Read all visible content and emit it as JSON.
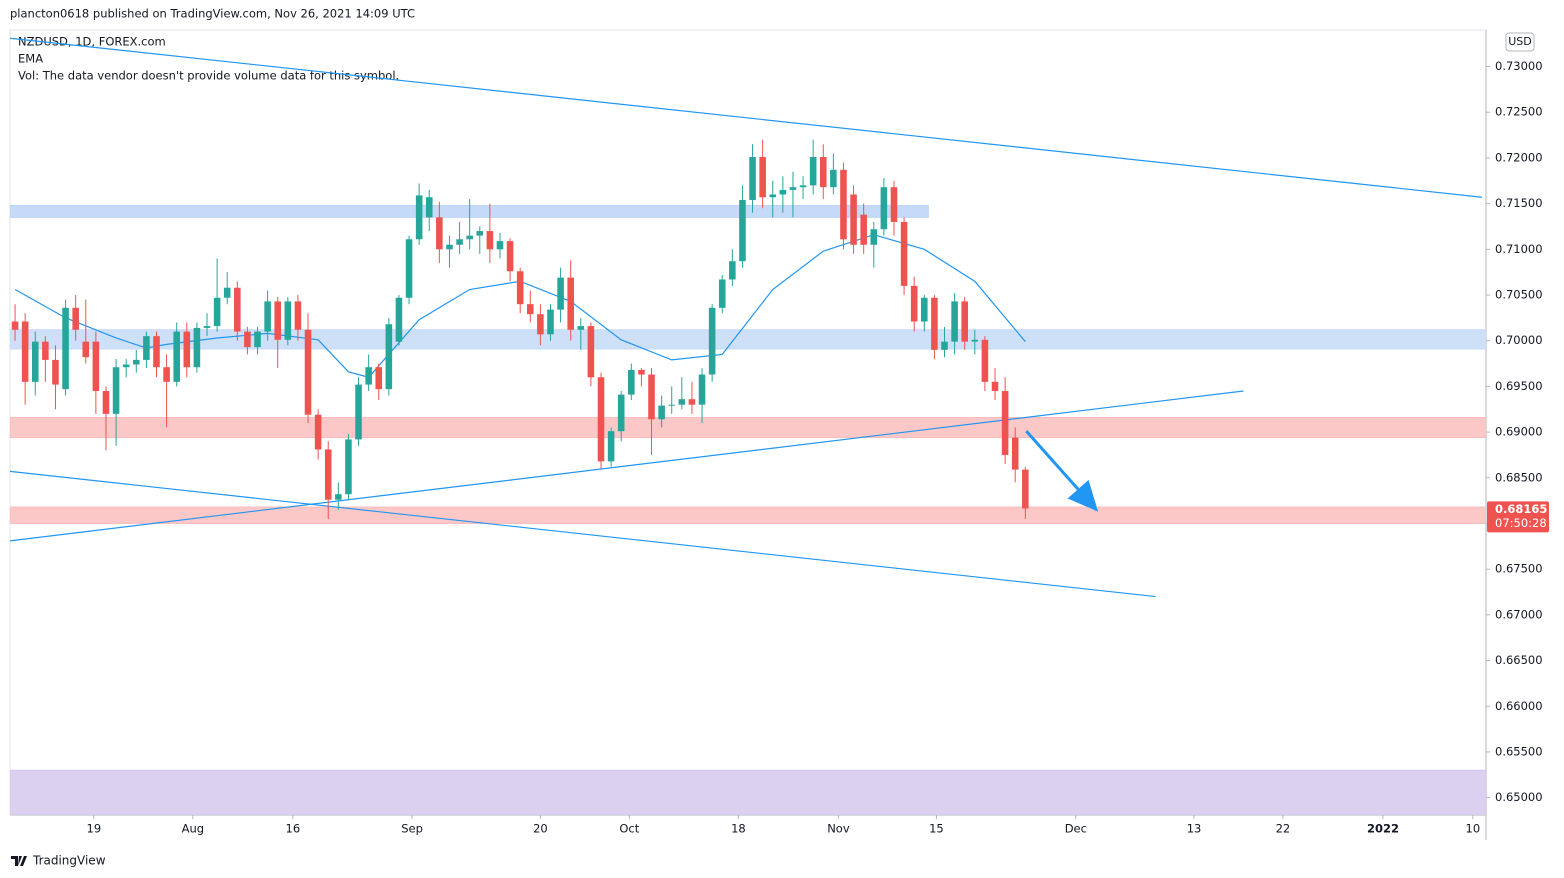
{
  "header": {
    "published": "plancton0618 published on TradingView.com, Nov 26, 2021 14:09 UTC",
    "symbol": "NZDUSD, 1D, FOREX.com",
    "indicator": "EMA",
    "volume_note": "Vol: The data vendor doesn't provide volume data for this symbol.",
    "currency": "USD"
  },
  "footer": {
    "brand": "TradingView"
  },
  "chart_data": {
    "type": "candlestick",
    "up_color": "#26a69a",
    "down_color": "#ef5350",
    "xlim": [
      -0.5,
      145.6
    ],
    "ylim": [
      0.6481,
      0.734
    ],
    "xticks": [
      {
        "value": 7.8,
        "label": "19"
      },
      {
        "value": 17.6,
        "label": "Aug"
      },
      {
        "value": 27.5,
        "label": "16"
      },
      {
        "value": 39.3,
        "label": "Sep"
      },
      {
        "value": 52,
        "label": "20"
      },
      {
        "value": 60.8,
        "label": "Oct"
      },
      {
        "value": 71.6,
        "label": "18"
      },
      {
        "value": 81.5,
        "label": "Nov"
      },
      {
        "value": 91.2,
        "label": "15"
      },
      {
        "value": 105,
        "label": "Dec"
      },
      {
        "value": 116.7,
        "label": "13"
      },
      {
        "value": 125.5,
        "label": "22"
      },
      {
        "value": 135.4,
        "label": "2022"
      },
      {
        "value": 144.3,
        "label": "10"
      }
    ],
    "yticks": [
      {
        "value": 0.65,
        "label": "0.65000"
      },
      {
        "value": 0.655,
        "label": "0.65500"
      },
      {
        "value": 0.66,
        "label": "0.66000"
      },
      {
        "value": 0.665,
        "label": "0.66500"
      },
      {
        "value": 0.67,
        "label": "0.67000"
      },
      {
        "value": 0.675,
        "label": "0.67500"
      },
      {
        "value": 0.68,
        "label": "0.68000"
      },
      {
        "value": 0.685,
        "label": "0.68500"
      },
      {
        "value": 0.69,
        "label": "0.69000"
      },
      {
        "value": 0.695,
        "label": "0.69500"
      },
      {
        "value": 0.7,
        "label": "0.70000"
      },
      {
        "value": 0.705,
        "label": "0.70500"
      },
      {
        "value": 0.71,
        "label": "0.71000"
      },
      {
        "value": 0.715,
        "label": "0.71500"
      },
      {
        "value": 0.72,
        "label": "0.72000"
      },
      {
        "value": 0.725,
        "label": "0.72500"
      },
      {
        "value": 0.73,
        "label": "0.73000"
      }
    ],
    "candles": [
      [
        0.7021,
        0.704,
        0.7,
        0.7012
      ],
      [
        0.7021,
        0.703,
        0.693,
        0.6955
      ],
      [
        0.6955,
        0.701,
        0.694,
        0.6999
      ],
      [
        0.6999,
        0.7005,
        0.6955,
        0.6979
      ],
      [
        0.6979,
        0.6995,
        0.6925,
        0.6952
      ],
      [
        0.6947,
        0.7045,
        0.694,
        0.7036
      ],
      [
        0.7036,
        0.705,
        0.7,
        0.7012
      ],
      [
        0.6999,
        0.7045,
        0.6975,
        0.6982
      ],
      [
        0.6999,
        0.701,
        0.692,
        0.6945
      ],
      [
        0.6945,
        0.695,
        0.688,
        0.692
      ],
      [
        0.692,
        0.698,
        0.6885,
        0.6971
      ],
      [
        0.6971,
        0.698,
        0.696,
        0.6974
      ],
      [
        0.6974,
        0.699,
        0.6965,
        0.6979
      ],
      [
        0.6979,
        0.701,
        0.697,
        0.7005
      ],
      [
        0.7005,
        0.701,
        0.696,
        0.6971
      ],
      [
        0.6971,
        0.6985,
        0.6905,
        0.6955
      ],
      [
        0.6955,
        0.702,
        0.695,
        0.701
      ],
      [
        0.701,
        0.702,
        0.696,
        0.6971
      ],
      [
        0.6971,
        0.702,
        0.6965,
        0.7014
      ],
      [
        0.7014,
        0.703,
        0.7005,
        0.7016
      ],
      [
        0.7016,
        0.709,
        0.701,
        0.7047
      ],
      [
        0.7047,
        0.7075,
        0.704,
        0.7058
      ],
      [
        0.7058,
        0.7065,
        0.7,
        0.701
      ],
      [
        0.701,
        0.7015,
        0.6985,
        0.6993
      ],
      [
        0.6993,
        0.7015,
        0.6985,
        0.701
      ],
      [
        0.701,
        0.7055,
        0.7,
        0.7043
      ],
      [
        0.7043,
        0.7048,
        0.697,
        0.7001
      ],
      [
        0.7001,
        0.7048,
        0.6995,
        0.7043
      ],
      [
        0.7043,
        0.705,
        0.7,
        0.7012
      ],
      [
        0.7012,
        0.703,
        0.691,
        0.6919
      ],
      [
        0.6919,
        0.6925,
        0.687,
        0.6881
      ],
      [
        0.6881,
        0.689,
        0.6805,
        0.6826
      ],
      [
        0.6826,
        0.6845,
        0.6815,
        0.6832
      ],
      [
        0.6832,
        0.6898,
        0.6825,
        0.6892
      ],
      [
        0.6892,
        0.696,
        0.6885,
        0.6952
      ],
      [
        0.6952,
        0.6985,
        0.6945,
        0.6971
      ],
      [
        0.6971,
        0.6975,
        0.6935,
        0.6947
      ],
      [
        0.6947,
        0.7025,
        0.694,
        0.7018
      ],
      [
        0.6999,
        0.705,
        0.6995,
        0.7047
      ],
      [
        0.7047,
        0.7115,
        0.704,
        0.7111
      ],
      [
        0.7111,
        0.7172,
        0.7105,
        0.7159
      ],
      [
        0.7135,
        0.7165,
        0.712,
        0.7157
      ],
      [
        0.7135,
        0.7152,
        0.7085,
        0.71
      ],
      [
        0.71,
        0.7115,
        0.708,
        0.7105
      ],
      [
        0.7105,
        0.713,
        0.7095,
        0.7111
      ],
      [
        0.7111,
        0.7155,
        0.71,
        0.7115
      ],
      [
        0.7115,
        0.7125,
        0.7095,
        0.712
      ],
      [
        0.712,
        0.715,
        0.7085,
        0.71
      ],
      [
        0.71,
        0.7118,
        0.709,
        0.7109
      ],
      [
        0.7109,
        0.7112,
        0.7065,
        0.7076
      ],
      [
        0.7076,
        0.708,
        0.703,
        0.704
      ],
      [
        0.704,
        0.7055,
        0.702,
        0.7029
      ],
      [
        0.7029,
        0.704,
        0.6995,
        0.7007
      ],
      [
        0.7007,
        0.704,
        0.7,
        0.7034
      ],
      [
        0.7034,
        0.708,
        0.702,
        0.7069
      ],
      [
        0.7069,
        0.7088,
        0.7,
        0.7012
      ],
      [
        0.7012,
        0.7025,
        0.699,
        0.7016
      ],
      [
        0.7016,
        0.702,
        0.695,
        0.696
      ],
      [
        0.696,
        0.6965,
        0.686,
        0.6868
      ],
      [
        0.6868,
        0.6905,
        0.6862,
        0.6901
      ],
      [
        0.6901,
        0.6945,
        0.689,
        0.6941
      ],
      [
        0.6941,
        0.6975,
        0.6935,
        0.6968
      ],
      [
        0.6968,
        0.697,
        0.695,
        0.6963
      ],
      [
        0.6963,
        0.697,
        0.6875,
        0.6914
      ],
      [
        0.6914,
        0.694,
        0.6905,
        0.6929
      ],
      [
        0.6929,
        0.695,
        0.692,
        0.693
      ],
      [
        0.693,
        0.696,
        0.6925,
        0.6936
      ],
      [
        0.6936,
        0.6955,
        0.692,
        0.693
      ],
      [
        0.693,
        0.697,
        0.691,
        0.6963
      ],
      [
        0.6963,
        0.704,
        0.6955,
        0.7036
      ],
      [
        0.7036,
        0.7072,
        0.703,
        0.7067
      ],
      [
        0.7067,
        0.71,
        0.706,
        0.7087
      ],
      [
        0.7087,
        0.717,
        0.708,
        0.7154
      ],
      [
        0.7154,
        0.7215,
        0.714,
        0.7201
      ],
      [
        0.7201,
        0.722,
        0.7145,
        0.7157
      ],
      [
        0.7157,
        0.7175,
        0.7135,
        0.716
      ],
      [
        0.716,
        0.718,
        0.714,
        0.7165
      ],
      [
        0.7165,
        0.7185,
        0.7135,
        0.7168
      ],
      [
        0.7168,
        0.718,
        0.7155,
        0.717
      ],
      [
        0.717,
        0.722,
        0.716,
        0.7201
      ],
      [
        0.7201,
        0.7215,
        0.7155,
        0.7168
      ],
      [
        0.7168,
        0.7205,
        0.716,
        0.7187
      ],
      [
        0.7187,
        0.7195,
        0.71,
        0.7111
      ],
      [
        0.716,
        0.717,
        0.7095,
        0.7105
      ],
      [
        0.7138,
        0.715,
        0.7095,
        0.7105
      ],
      [
        0.7105,
        0.713,
        0.708,
        0.7122
      ],
      [
        0.7122,
        0.7178,
        0.7115,
        0.7168
      ],
      [
        0.7168,
        0.7175,
        0.7115,
        0.713
      ],
      [
        0.713,
        0.7135,
        0.705,
        0.706
      ],
      [
        0.706,
        0.707,
        0.701,
        0.7021
      ],
      [
        0.7021,
        0.705,
        0.701,
        0.7047
      ],
      [
        0.7047,
        0.705,
        0.698,
        0.699
      ],
      [
        0.699,
        0.7015,
        0.6982,
        0.6999
      ],
      [
        0.6999,
        0.7052,
        0.6985,
        0.7043
      ],
      [
        0.7043,
        0.7048,
        0.699,
        0.6999
      ],
      [
        0.6999,
        0.7012,
        0.6985,
        0.7001
      ],
      [
        0.7001,
        0.7005,
        0.6945,
        0.6955
      ],
      [
        0.6955,
        0.697,
        0.6935,
        0.6945
      ],
      [
        0.6945,
        0.696,
        0.6865,
        0.6875
      ],
      [
        0.6894,
        0.6905,
        0.6845,
        0.6859
      ],
      [
        0.6859,
        0.6862,
        0.6805,
        0.68165
      ]
    ],
    "ema": {
      "color": "#2196f3",
      "x": [
        0,
        5,
        10,
        13,
        15,
        20,
        25,
        30,
        33,
        35,
        40,
        45,
        50,
        55,
        60,
        65,
        70,
        75,
        80,
        85,
        90,
        95,
        100
      ],
      "values": [
        0.7056,
        0.7025,
        0.7003,
        0.6992,
        0.6996,
        0.7003,
        0.7008,
        0.7001,
        0.6966,
        0.696,
        0.7023,
        0.7056,
        0.7065,
        0.7043,
        0.7001,
        0.6979,
        0.6985,
        0.7056,
        0.7098,
        0.7116,
        0.71,
        0.7065,
        0.6999
      ]
    },
    "zones": [
      {
        "x": [
          -0.5,
          90.4
        ],
        "low": 0.7135,
        "high": 0.7148,
        "color": "#bbd4f7"
      },
      {
        "x": [
          -0.5,
          145.6
        ],
        "low": 0.6991,
        "high": 0.7012,
        "color": "#c5d9f7"
      },
      {
        "x": [
          -0.5,
          145.6
        ],
        "low": 0.6894,
        "high": 0.6916,
        "color": "#fbbdbd"
      },
      {
        "x": [
          -0.5,
          145.6
        ],
        "low": 0.68,
        "high": 0.6818,
        "color": "#fbbdbd"
      },
      {
        "x": [
          -0.5,
          145.6
        ],
        "low": 0.6481,
        "high": 0.653,
        "color": "#d5c8ec"
      }
    ],
    "trendlines": [
      {
        "x": [
          -0.5,
          145.2
        ],
        "y": [
          0.7331,
          0.7157
        ],
        "color": "#2196f3"
      },
      {
        "x": [
          -0.5,
          112.9
        ],
        "y": [
          0.6857,
          0.672
        ],
        "color": "#2196f3"
      },
      {
        "x": [
          -0.5,
          121.6
        ],
        "y": [
          0.6781,
          0.6945
        ],
        "color": "#2196f3"
      }
    ],
    "arrow": {
      "x": [
        100.1,
        107.2
      ],
      "y": [
        0.6901,
        0.6813
      ],
      "color": "#2196f3"
    },
    "last_price": 0.68165,
    "countdown": "07:50:28"
  }
}
